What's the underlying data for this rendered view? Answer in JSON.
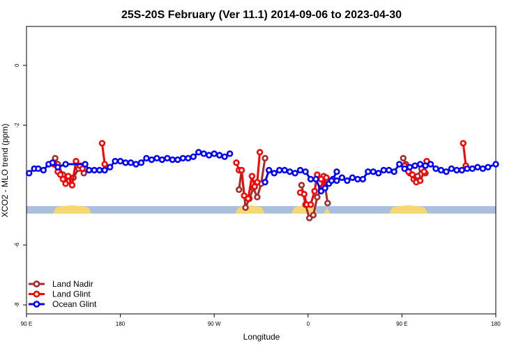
{
  "chart_data": {
    "type": "line",
    "title": "25S-20S February (Ver 11.1)   2014-09-06 to 2023-04-30",
    "xlabel": "Longitude",
    "ylabel": "XCO2 - MLO trend (ppm)",
    "xlim": [
      90,
      450
    ],
    "ylim": [
      -8.3,
      1.3
    ],
    "x_ticks": [
      {
        "value": 90,
        "label": "90 E"
      },
      {
        "value": 162,
        "label": "180"
      },
      {
        "value": 234,
        "label": "90 W"
      },
      {
        "value": 306,
        "label": "0"
      },
      {
        "value": 378,
        "label": "90 E"
      },
      {
        "value": 450,
        "label": "180"
      }
    ],
    "y_ticks": [
      {
        "value": 0,
        "label": "0"
      },
      {
        "value": -2,
        "label": "-2"
      },
      {
        "value": -6,
        "label": "-6"
      },
      {
        "value": -8,
        "label": "-8"
      }
    ],
    "land_band": {
      "y_top": -4.7,
      "y_bottom": -4.95,
      "ocean_color": "#a9bfdc",
      "land_color": "#f7d774",
      "land_x_ranges": [
        [
          110,
          140
        ],
        [
          250,
          273
        ],
        [
          293,
          313
        ],
        [
          318,
          323
        ],
        [
          368,
          398
        ]
      ]
    },
    "legend_position": "bottom-left",
    "series": [
      {
        "name": "Land Nadir",
        "color": "#a52a2a",
        "segments": [
          [
            [
              112,
              -3.1
            ],
            [
              114,
              -3.3
            ],
            [
              118,
              -3.65
            ],
            [
              122,
              -3.85
            ],
            [
              126,
              -3.75
            ],
            [
              130,
              -3.45
            ],
            [
              134,
              -3.6
            ]
          ],
          [
            [
              253,
              -4.15
            ],
            [
              255,
              -3.5
            ],
            [
              258,
              -4.75
            ],
            [
              261,
              -4.45
            ],
            [
              264,
              -4.1
            ],
            [
              267,
              -4.4
            ],
            [
              270,
              -3.95
            ],
            [
              273,
              -3.1
            ]
          ],
          [
            [
              301,
              -4.0
            ],
            [
              304,
              -4.65
            ],
            [
              307,
              -5.1
            ],
            [
              310,
              -5.0
            ],
            [
              313,
              -4.4
            ],
            [
              316,
              -4.1
            ],
            [
              318,
              -3.7
            ],
            [
              321,
              -4.6
            ]
          ],
          [
            [
              379,
              -3.1
            ],
            [
              381,
              -3.3
            ],
            [
              384,
              -3.6
            ],
            [
              387,
              -3.8
            ],
            [
              390,
              -3.7
            ],
            [
              393,
              -3.45
            ],
            [
              396,
              -3.6
            ]
          ]
        ]
      },
      {
        "name": "Land Glint",
        "color": "#ff0000",
        "segments": [
          [
            [
              111,
              -3.3
            ],
            [
              114,
              -3.55
            ],
            [
              116,
              -3.65
            ],
            [
              118,
              -3.8
            ],
            [
              120,
              -3.95
            ],
            [
              122,
              -3.7
            ],
            [
              125,
              -4.0
            ],
            [
              128,
              -3.2
            ],
            [
              131,
              -3.35
            ],
            [
              133,
              -3.45
            ]
          ],
          [
            [
              148,
              -2.6
            ],
            [
              150,
              -3.3
            ]
          ],
          [
            [
              251,
              -3.25
            ],
            [
              253,
              -3.5
            ],
            [
              255,
              -3.5
            ],
            [
              257,
              -4.35
            ],
            [
              260,
              -4.45
            ],
            [
              263,
              -3.7
            ],
            [
              265,
              -4.05
            ],
            [
              267,
              -3.9
            ],
            [
              269,
              -2.9
            ]
          ],
          [
            [
              300,
              -4.25
            ],
            [
              303,
              -4.3
            ],
            [
              305,
              -4.65
            ],
            [
              308,
              -4.65
            ],
            [
              311,
              -4.2
            ],
            [
              313,
              -3.65
            ],
            [
              316,
              -3.8
            ],
            [
              318,
              -4.05
            ],
            [
              320,
              -3.75
            ]
          ],
          [
            [
              380,
              -3.35
            ],
            [
              383,
              -3.55
            ],
            [
              386,
              -3.65
            ],
            [
              389,
              -3.9
            ],
            [
              392,
              -3.85
            ],
            [
              395,
              -3.55
            ],
            [
              397,
              -3.2
            ],
            [
              400,
              -3.3
            ]
          ],
          [
            [
              425,
              -2.6
            ],
            [
              427,
              -3.35
            ]
          ]
        ]
      },
      {
        "name": "Ocean Glint",
        "color": "#0000ff",
        "segments": [
          [
            [
              92,
              -3.6
            ],
            [
              96,
              -3.45
            ],
            [
              99,
              -3.45
            ],
            [
              103,
              -3.5
            ],
            [
              107,
              -3.3
            ],
            [
              110,
              -3.25
            ],
            [
              114,
              -3.4
            ],
            [
              120,
              -3.3
            ],
            [
              135,
              -3.3
            ],
            [
              138,
              -3.5
            ],
            [
              142,
              -3.5
            ],
            [
              146,
              -3.5
            ],
            [
              150,
              -3.5
            ],
            [
              154,
              -3.4
            ],
            [
              158,
              -3.2
            ],
            [
              162,
              -3.2
            ],
            [
              166,
              -3.25
            ],
            [
              170,
              -3.25
            ],
            [
              174,
              -3.3
            ],
            [
              178,
              -3.25
            ],
            [
              182,
              -3.1
            ],
            [
              186,
              -3.15
            ],
            [
              190,
              -3.1
            ],
            [
              194,
              -3.15
            ],
            [
              198,
              -3.1
            ],
            [
              202,
              -3.15
            ],
            [
              206,
              -3.15
            ],
            [
              210,
              -3.1
            ],
            [
              214,
              -3.1
            ],
            [
              218,
              -3.05
            ],
            [
              222,
              -2.9
            ],
            [
              226,
              -2.95
            ],
            [
              230,
              -3.0
            ],
            [
              234,
              -2.95
            ],
            [
              238,
              -3.0
            ],
            [
              242,
              -3.05
            ],
            [
              246,
              -2.95
            ]
          ],
          [
            [
              273,
              -3.9
            ],
            [
              276,
              -3.5
            ],
            [
              280,
              -3.6
            ],
            [
              284,
              -3.5
            ],
            [
              288,
              -3.5
            ],
            [
              292,
              -3.55
            ],
            [
              296,
              -3.6
            ],
            [
              300,
              -3.5
            ],
            [
              304,
              -3.55
            ],
            [
              308,
              -3.8
            ],
            [
              312,
              -3.8
            ],
            [
              316,
              -4.2
            ],
            [
              319,
              -4.1
            ],
            [
              322,
              -3.95
            ],
            [
              325,
              -3.8
            ],
            [
              328,
              -3.55
            ]
          ],
          [
            [
              324,
              -3.85
            ],
            [
              328,
              -3.85
            ],
            [
              332,
              -3.75
            ],
            [
              336,
              -3.85
            ],
            [
              340,
              -3.75
            ],
            [
              344,
              -3.8
            ],
            [
              348,
              -3.8
            ],
            [
              352,
              -3.55
            ],
            [
              356,
              -3.55
            ],
            [
              360,
              -3.6
            ],
            [
              364,
              -3.5
            ],
            [
              368,
              -3.5
            ],
            [
              372,
              -3.55
            ],
            [
              376,
              -3.3
            ],
            [
              380,
              -3.45
            ],
            [
              384,
              -3.4
            ],
            [
              388,
              -3.35
            ],
            [
              392,
              -3.3
            ],
            [
              396,
              -3.35
            ],
            [
              400,
              -3.3
            ],
            [
              404,
              -3.45
            ],
            [
              408,
              -3.5
            ],
            [
              412,
              -3.55
            ],
            [
              416,
              -3.45
            ],
            [
              420,
              -3.5
            ],
            [
              424,
              -3.5
            ],
            [
              428,
              -3.45
            ],
            [
              432,
              -3.45
            ],
            [
              436,
              -3.4
            ],
            [
              440,
              -3.45
            ],
            [
              444,
              -3.4
            ],
            [
              450,
              -3.3
            ]
          ]
        ]
      }
    ]
  }
}
